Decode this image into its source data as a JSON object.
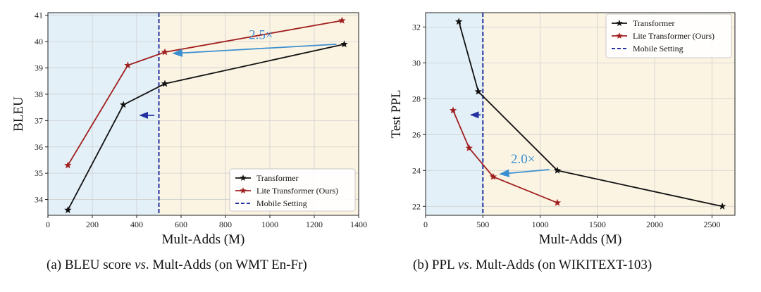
{
  "chart_data": [
    {
      "type": "line",
      "title": "",
      "caption_prefix": "(a) BLEU score ",
      "caption_vs": "vs",
      "caption_suffix": ". Mult-Adds (on WMT En-Fr)",
      "xlabel": "Mult-Adds (M)",
      "ylabel": "BLEU",
      "xlim": [
        0,
        1400
      ],
      "ylim": [
        33.4,
        41.1
      ],
      "xticks": [
        0,
        200,
        400,
        600,
        800,
        1000,
        1200,
        1400
      ],
      "yticks": [
        34,
        35,
        36,
        37,
        38,
        39,
        40,
        41
      ],
      "mobile_setting_x": 500,
      "grid": true,
      "legend_position": "lower-right",
      "series": [
        {
          "name": "Transformer",
          "color": "#111111",
          "x": [
            90,
            340,
            527,
            1335
          ],
          "y": [
            33.6,
            37.6,
            38.4,
            39.9
          ]
        },
        {
          "name": "Lite Transformer (Ours)",
          "color": "#a01f1f",
          "x": [
            90,
            360,
            527,
            1325
          ],
          "y": [
            35.3,
            39.1,
            39.6,
            40.8
          ]
        },
        {
          "name": "Mobile Setting",
          "color": "#2432a0",
          "dashed": true
        }
      ],
      "annotations": [
        {
          "text": "2.5×",
          "x": 960,
          "y": 40.1,
          "arrow_from": [
            1300,
            39.9
          ],
          "arrow_to": [
            565,
            39.55
          ],
          "color": "#3a8fd1"
        },
        {
          "text": "",
          "arrow_from": [
            480,
            37.2
          ],
          "arrow_to": [
            415,
            37.2
          ],
          "color": "#2432a0"
        }
      ]
    },
    {
      "type": "line",
      "title": "",
      "caption_prefix": "(b) PPL ",
      "caption_vs": "vs",
      "caption_suffix": ". Mult-Adds (on WIKITEXT-103)",
      "xlabel": "Mult-Adds (M)",
      "ylabel": "Test PPL",
      "xlim": [
        0,
        2700
      ],
      "ylim": [
        21.5,
        32.8
      ],
      "xticks": [
        0,
        500,
        1000,
        1500,
        2000,
        2500
      ],
      "yticks": [
        22,
        24,
        26,
        28,
        30,
        32
      ],
      "mobile_setting_x": 500,
      "grid": true,
      "legend_position": "top-right",
      "series": [
        {
          "name": "Transformer",
          "color": "#111111",
          "x": [
            290,
            460,
            1150,
            2590
          ],
          "y": [
            32.3,
            28.4,
            24.0,
            22.0
          ]
        },
        {
          "name": "Lite Transformer (Ours)",
          "color": "#a01f1f",
          "x": [
            240,
            380,
            590,
            1150
          ],
          "y": [
            27.35,
            25.25,
            23.65,
            22.2
          ]
        },
        {
          "name": "Mobile Setting",
          "color": "#2432a0",
          "dashed": true
        }
      ],
      "annotations": [
        {
          "text": "2.0×",
          "x": 850,
          "y": 24.4,
          "arrow_from": [
            1080,
            24.05
          ],
          "arrow_to": [
            650,
            23.8
          ],
          "color": "#3a8fd1"
        },
        {
          "text": "",
          "arrow_from": [
            480,
            27.1
          ],
          "arrow_to": [
            395,
            27.1
          ],
          "color": "#2432a0"
        }
      ]
    }
  ],
  "colors": {
    "mobile_region": "#e3f0f8",
    "other_region": "#fbf4e3",
    "grid": "#cfcfcf"
  }
}
